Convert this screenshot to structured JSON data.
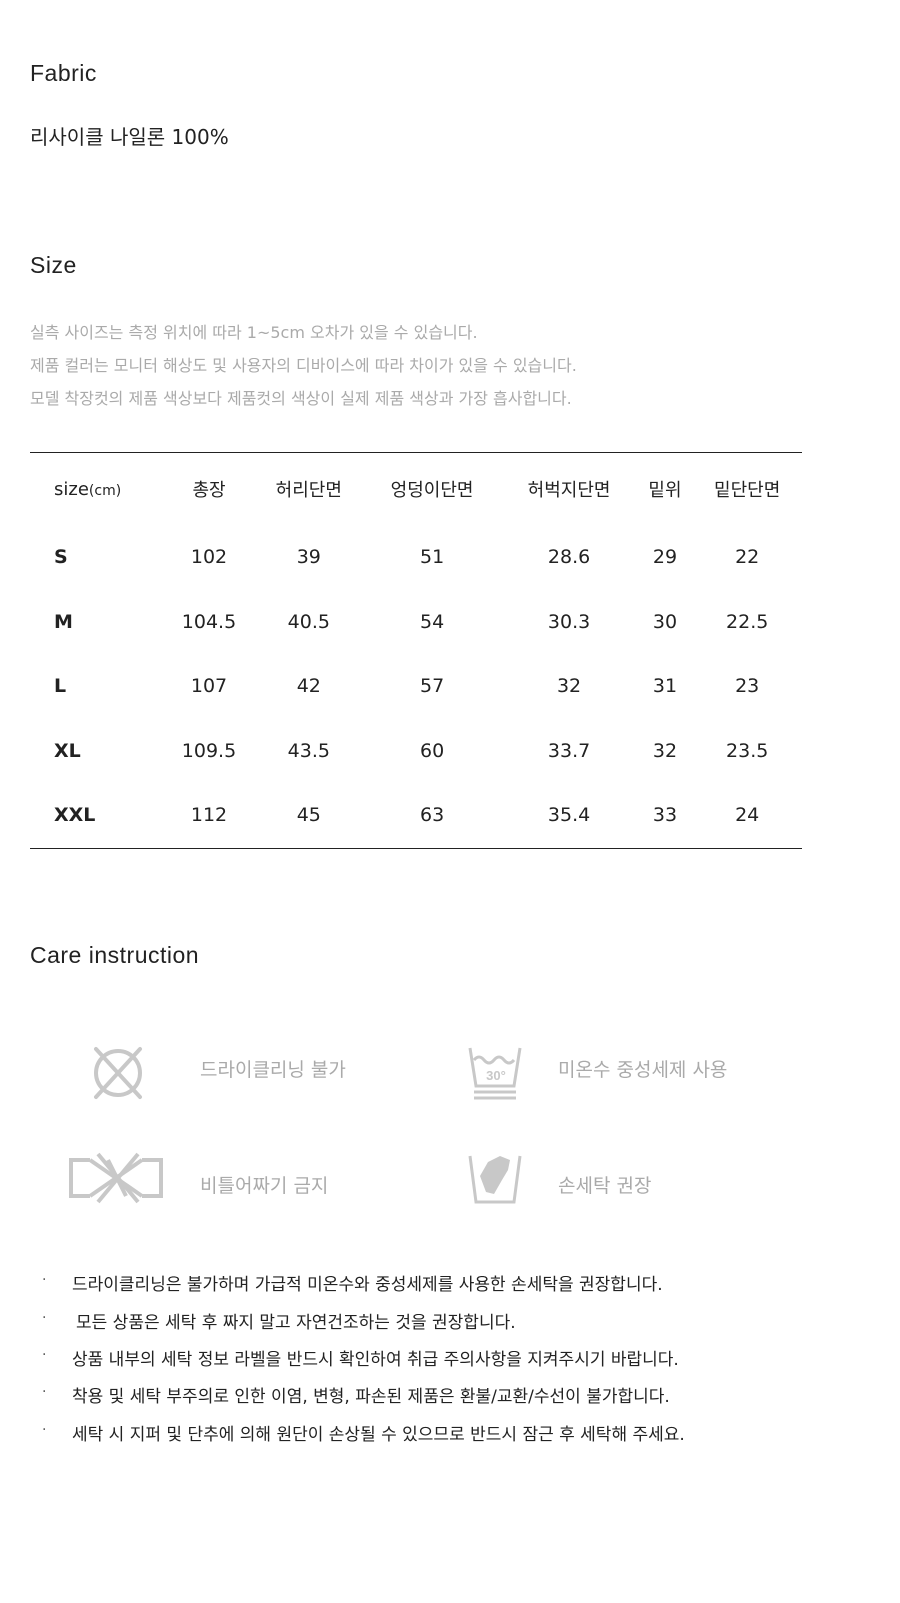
{
  "fabric": {
    "title": "Fabric",
    "value": "리사이클 나일론 100%"
  },
  "size": {
    "title": "Size",
    "notes": [
      "실측 사이즈는 측정 위치에 따라 1~5cm 오차가 있을 수 있습니다.",
      "제품 컬러는 모니터 해상도 및 사용자의 디바이스에 따라 차이가 있을 수 있습니다.",
      "모델 착장컷의 제품 색상보다 제품컷의 색상이 실제 제품 색상과 가장 흡사합니다."
    ],
    "table": {
      "header_main": "size",
      "header_unit": "(cm)",
      "columns": [
        "총장",
        "허리단면",
        "엉덩이단면",
        "허벅지단면",
        "밑위",
        "밑단단면"
      ],
      "rows": [
        {
          "size": "S",
          "values": [
            "102",
            "39",
            "51",
            "28.6",
            "29",
            "22"
          ]
        },
        {
          "size": "M",
          "values": [
            "104.5",
            "40.5",
            "54",
            "30.3",
            "30",
            "22.5"
          ]
        },
        {
          "size": "L",
          "values": [
            "107",
            "42",
            "57",
            "32",
            "31",
            "23"
          ]
        },
        {
          "size": "XL",
          "values": [
            "109.5",
            "43.5",
            "60",
            "33.7",
            "32",
            "23.5"
          ]
        },
        {
          "size": "XXL",
          "values": [
            "112",
            "45",
            "63",
            "35.4",
            "33",
            "24"
          ]
        }
      ]
    }
  },
  "care": {
    "title": "Care instruction",
    "icons": [
      {
        "icon": "no-dry-clean-icon",
        "label": "드라이클리닝 불가"
      },
      {
        "icon": "wash-30-icon",
        "label": "미온수 중성세제 사용",
        "temp": "30°"
      },
      {
        "icon": "no-wring-icon",
        "label": "비틀어짜기 금지"
      },
      {
        "icon": "hand-wash-icon",
        "label": "손세탁 권장"
      }
    ],
    "bullet_symbol": "·",
    "bullets": [
      "드라이클리닝은 불가하며 가급적 미온수와 중성세제를 사용한 손세탁을 권장합니다.",
      "모든 상품은 세탁 후 짜지 말고 자연건조하는 것을 권장합니다.",
      "상품 내부의 세탁 정보 라벨을 반드시 확인하여 취급 주의사항을 지켜주시기 바랍니다.",
      "착용 및 세탁 부주의로 인한 이염, 변형, 파손된 제품은 환불/교환/수선이 불가합니다.",
      "세탁 시 지퍼 및 단추에 의해 원단이 손상될 수 있으므로 반드시 잠근 후 세탁해 주세요."
    ],
    "icon_color": "#c8c8c8"
  }
}
